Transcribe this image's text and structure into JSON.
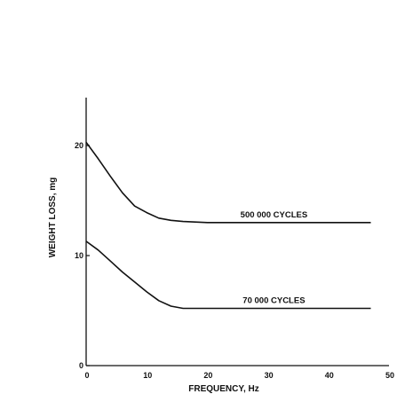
{
  "chart_data": {
    "type": "line",
    "title": "",
    "xlabel": "FREQUENCY, Hz",
    "ylabel": "WEIGHT LOSS, mg",
    "xlim": [
      0,
      50
    ],
    "ylim": [
      0,
      24
    ],
    "x_ticks": [
      "0",
      "10",
      "20",
      "30",
      "40",
      "50"
    ],
    "y_ticks": [
      "0",
      "10",
      "20"
    ],
    "grid": false,
    "series": [
      {
        "name": "500 000 CYCLES",
        "x": [
          0,
          2,
          4,
          6,
          8,
          10,
          12,
          14,
          16,
          20,
          30,
          40,
          47
        ],
        "y": [
          20.3,
          18.8,
          17.2,
          15.7,
          14.5,
          13.9,
          13.4,
          13.2,
          13.1,
          13.0,
          13.0,
          13.0,
          13.0
        ]
      },
      {
        "name": "70 000 CYCLES",
        "x": [
          0,
          2,
          4,
          6,
          8,
          10,
          12,
          14,
          16,
          20,
          30,
          40,
          47
        ],
        "y": [
          11.3,
          10.5,
          9.5,
          8.5,
          7.6,
          6.7,
          5.9,
          5.4,
          5.2,
          5.2,
          5.2,
          5.2,
          5.2
        ]
      }
    ],
    "annotations": [
      "500 000 CYCLES",
      "70 000 CYCLES"
    ],
    "line_color": "#111111"
  }
}
